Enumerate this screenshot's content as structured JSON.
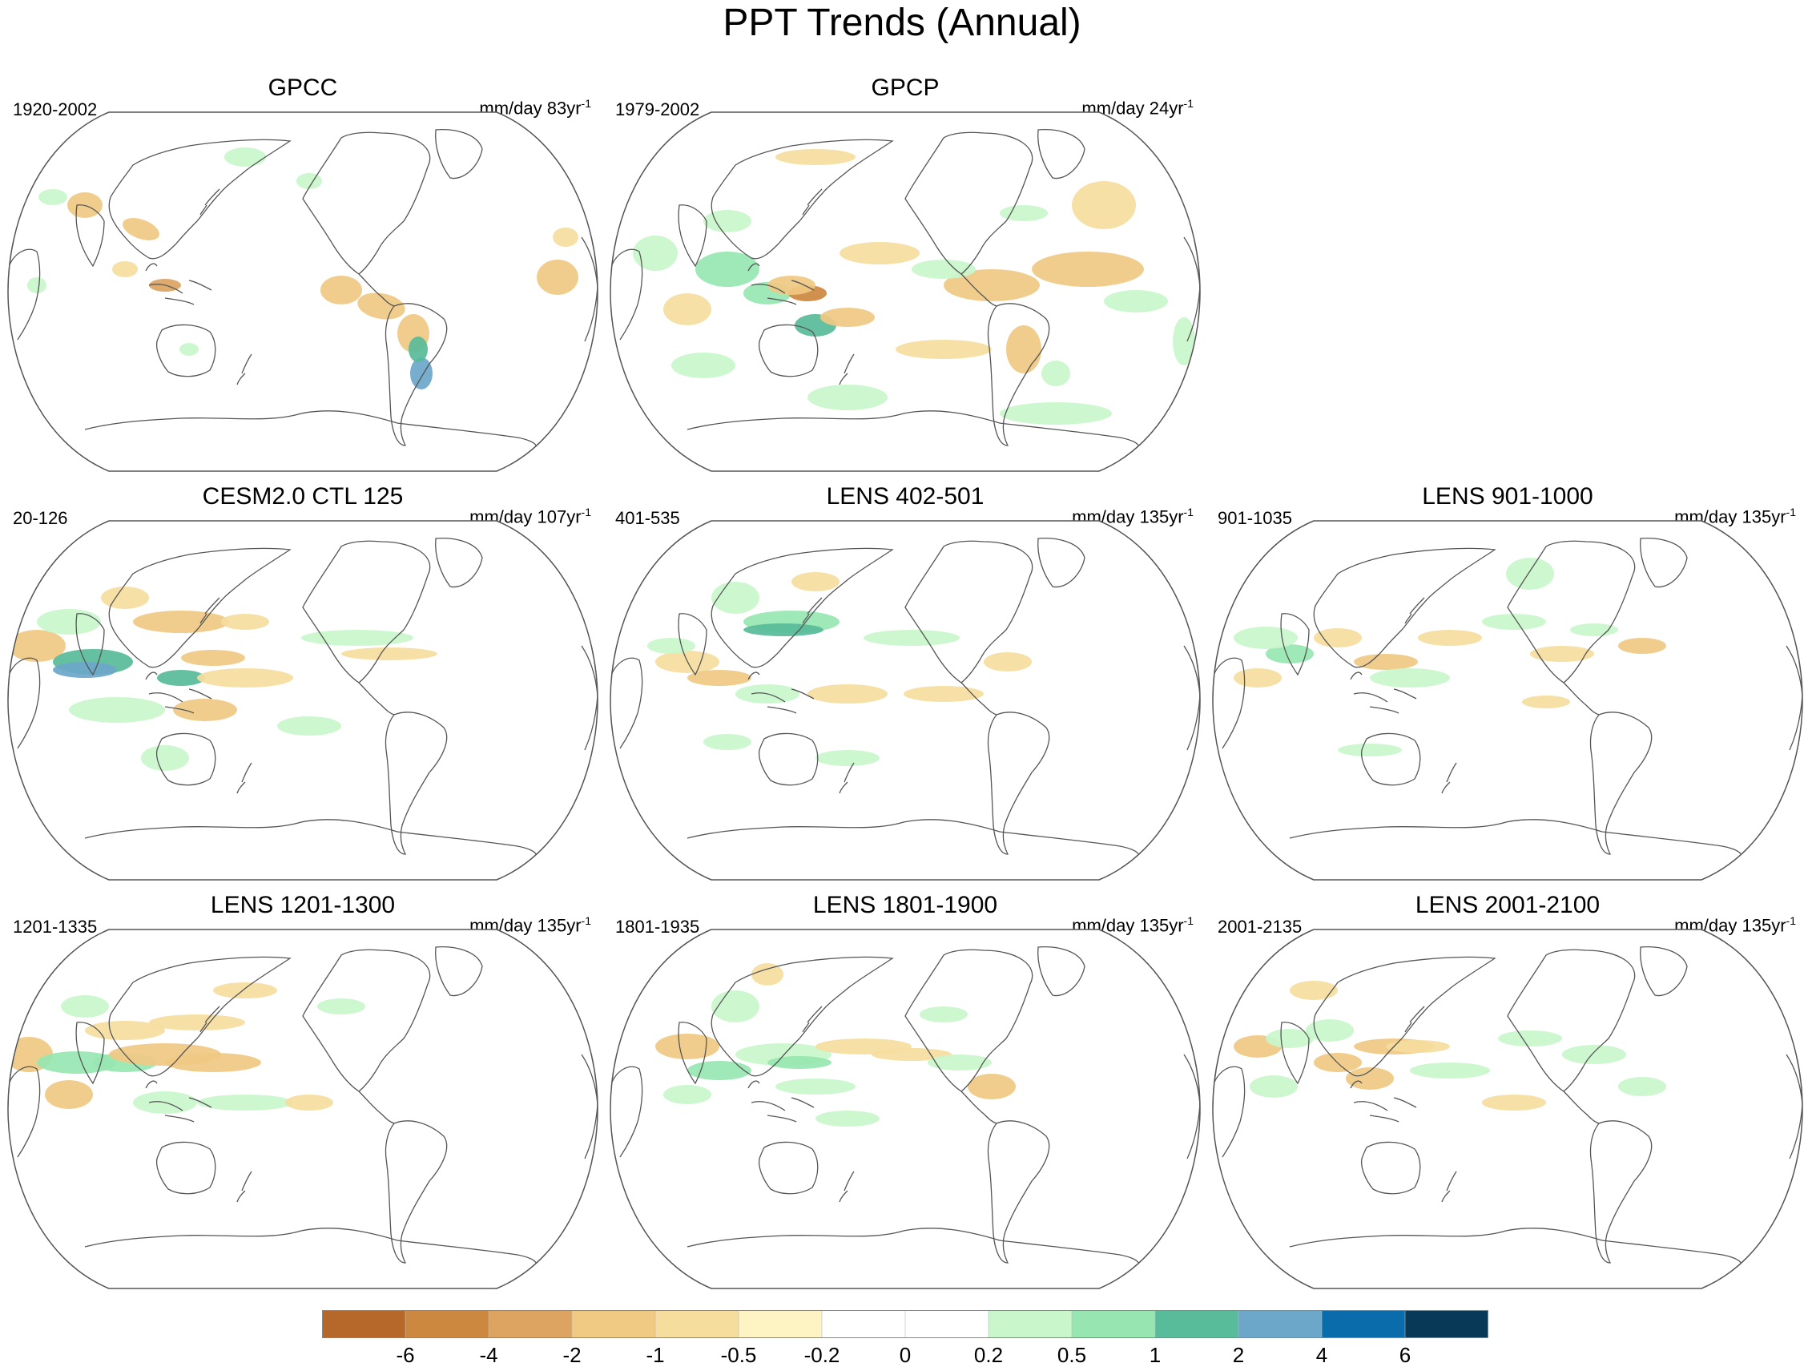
{
  "title": "PPT Trends (Annual)",
  "panels": [
    {
      "title": "GPCC",
      "period": "1920-2002",
      "units": "mm/day 83yr",
      "units_exp": "-1",
      "present": true
    },
    {
      "title": "GPCP",
      "period": "1979-2002",
      "units": "mm/day 24yr",
      "units_exp": "-1",
      "present": true
    },
    {
      "title": "CESM2.0 CTL 125",
      "period": "20-126",
      "units": "mm/day 107yr",
      "units_exp": "-1",
      "present": true
    },
    {
      "title": "LENS 402-501",
      "period": "401-535",
      "units": "mm/day 135yr",
      "units_exp": "-1",
      "present": true
    },
    {
      "title": "LENS 901-1000",
      "period": "901-1035",
      "units": "mm/day 135yr",
      "units_exp": "-1",
      "present": true
    },
    {
      "title": "LENS 1201-1300",
      "period": "1201-1335",
      "units": "mm/day 135yr",
      "units_exp": "-1",
      "present": true
    },
    {
      "title": "LENS 1801-1900",
      "period": "1801-1935",
      "units": "mm/day 135yr",
      "units_exp": "-1",
      "present": true
    },
    {
      "title": "LENS 2001-2100",
      "period": "2001-2135",
      "units": "mm/day 135yr",
      "units_exp": "-1",
      "present": true
    }
  ],
  "colorbar": {
    "labels": [
      "-6",
      "-4",
      "-2",
      "-1",
      "-0.5",
      "-0.2",
      "0",
      "0.2",
      "0.5",
      "1",
      "2",
      "4",
      "6"
    ],
    "colors": [
      "#b5682a",
      "#cd883f",
      "#dca361",
      "#f0c983",
      "#f5dd9e",
      "#fdf3c3",
      "#ffffff",
      "#ffffff",
      "#c9f6cb",
      "#97e6b1",
      "#58bb99",
      "#6ca7c9",
      "#0b6cac",
      "#083a58"
    ]
  },
  "colors": {
    "land_outline": "#555555",
    "frame": "#555555"
  }
}
